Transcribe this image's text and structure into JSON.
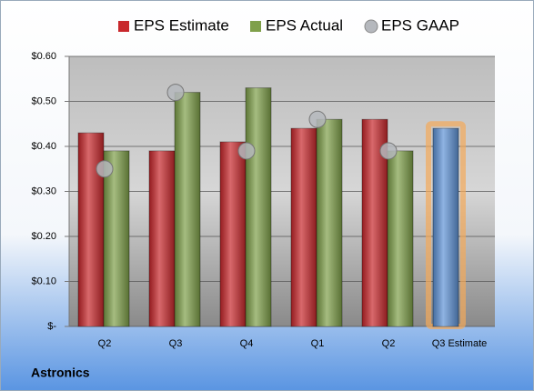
{
  "chart_data": {
    "type": "bar",
    "footer": "Astronics",
    "categories": [
      "Q2",
      "Q3",
      "Q4",
      "Q1",
      "Q2",
      "Q3 Estimate"
    ],
    "series": [
      {
        "name": "EPS Estimate",
        "color": "#c8282c",
        "colors": [
          "#c8282c",
          "#c8282c",
          "#c8282c",
          "#c8282c",
          "#c8282c",
          "#5f93d6"
        ],
        "values": [
          0.43,
          0.39,
          0.41,
          0.44,
          0.46,
          0.44
        ]
      },
      {
        "name": "EPS Actual",
        "color": "#7fa04a",
        "values": [
          0.39,
          0.52,
          0.53,
          0.46,
          0.39,
          null
        ]
      },
      {
        "name": "EPS GAAP",
        "color": "#b5b8bd",
        "marker": "circle",
        "values": [
          0.35,
          0.52,
          0.39,
          0.46,
          0.39,
          null
        ]
      }
    ],
    "ylim": [
      0,
      0.6
    ],
    "yticks": [
      {
        "value": 0,
        "label": "$-"
      },
      {
        "value": 0.1,
        "label": "$0.10"
      },
      {
        "value": 0.2,
        "label": "$0.20"
      },
      {
        "value": 0.3,
        "label": "$0.30"
      },
      {
        "value": 0.4,
        "label": "$0.40"
      },
      {
        "value": 0.5,
        "label": "$0.50"
      },
      {
        "value": 0.6,
        "label": "$0.60"
      }
    ],
    "grid": true,
    "legend": "top"
  }
}
